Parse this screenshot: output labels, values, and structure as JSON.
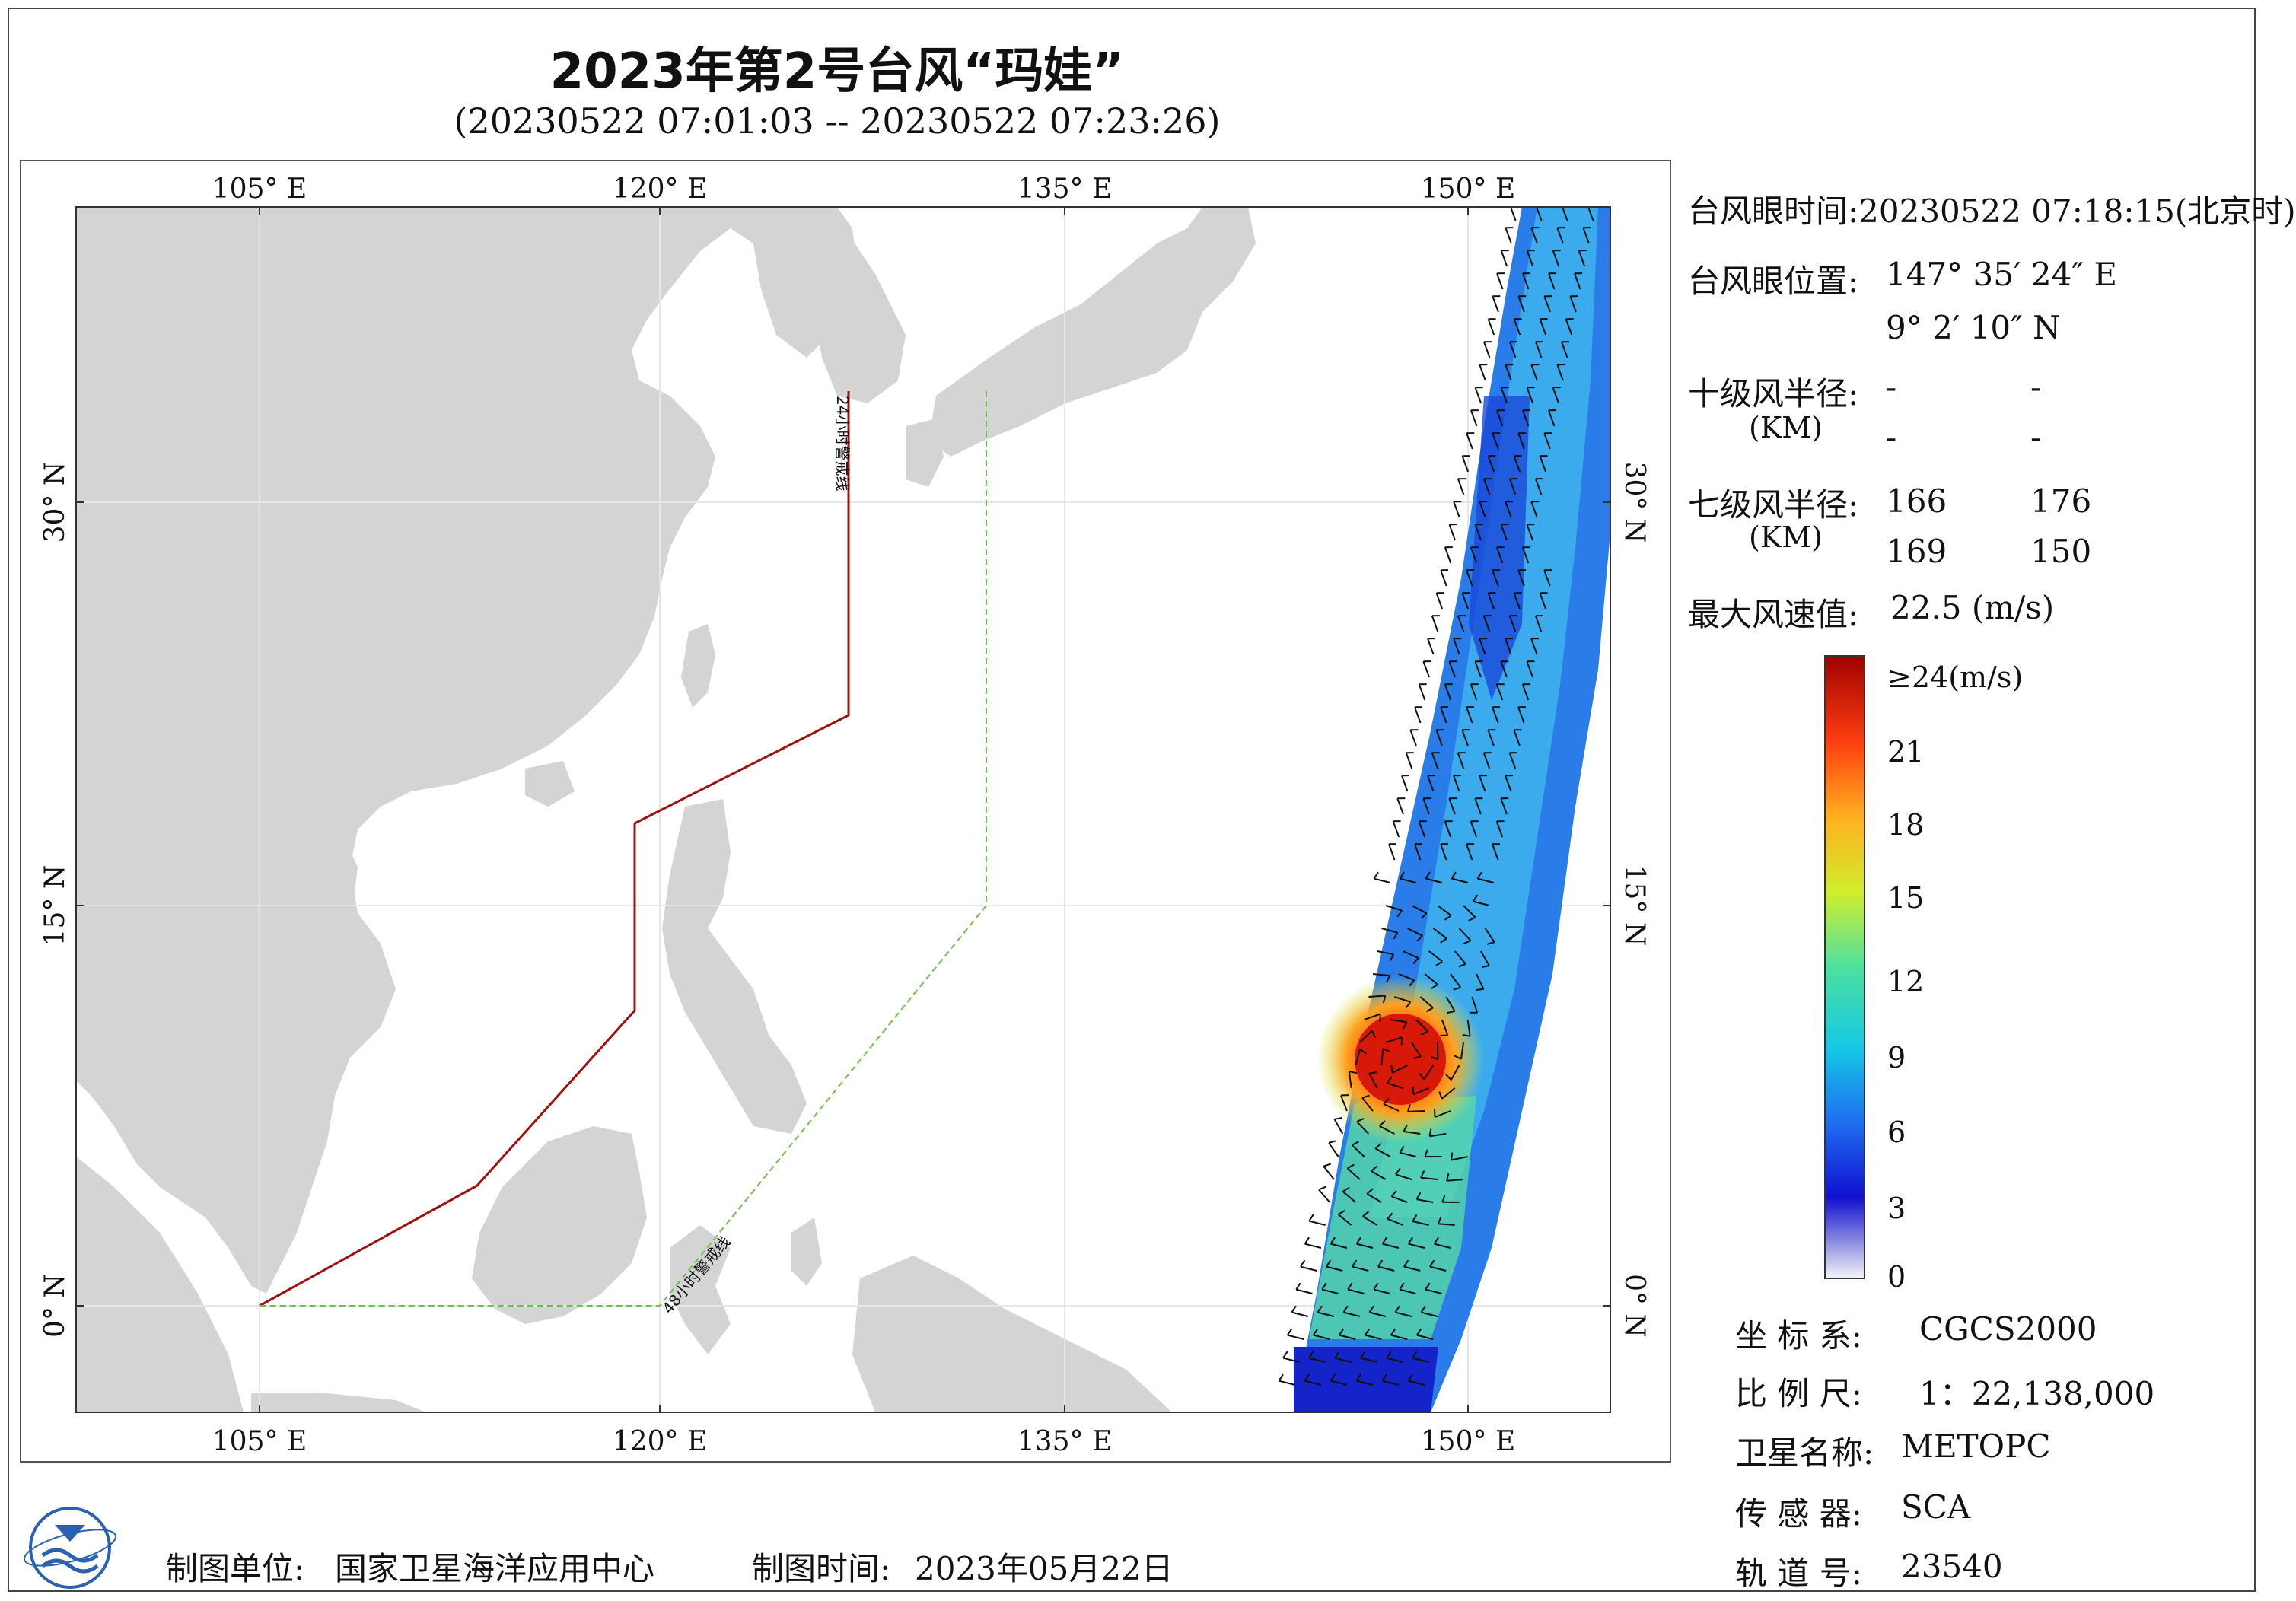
{
  "title": "2023年第2号台风“玛娃”",
  "subtitle": "(20230522 07:01:03 -- 20230522 07:23:26)",
  "map": {
    "lon_labels": [
      "105° E",
      "120° E",
      "135° E",
      "150° E"
    ],
    "lat_labels": [
      "30° N",
      "15° N",
      "0° N"
    ],
    "line_24h_label": "24小时警戒线",
    "line_48h_label": "48小时警戒线",
    "line_24h_color": "#a01010",
    "line_48h_color": "#6cc04a",
    "land_color": "#d4d4d4"
  },
  "info": {
    "eye_time_label": "台风眼时间:",
    "eye_time_value": "20230522 07:18:15(北京时)",
    "eye_pos_label": "台风眼位置:",
    "eye_lon": "147° 35′ 24″ E",
    "eye_lat": "9° 2′ 10″ N",
    "r10_label": "十级风半径:",
    "r10_unit": "(KM)",
    "r10_values": [
      "-",
      "-",
      "-",
      "-"
    ],
    "r7_label": "七级风半径:",
    "r7_unit": "(KM)",
    "r7_values": [
      "166",
      "176",
      "169",
      "150"
    ],
    "max_wind_label": "最大风速值:",
    "max_wind_value": "22.5  (m/s)"
  },
  "colorbar": {
    "labels": [
      "≥24(m/s)",
      "21",
      "18",
      "15",
      "12",
      "9",
      "6",
      "3",
      "0"
    ]
  },
  "meta": {
    "crs_label": "坐 标 系:",
    "crs_value": "CGCS2000",
    "scale_label": "比 例 尺:",
    "scale_value": "1：22,138,000",
    "satellite_label": "卫星名称:",
    "satellite_value": "METOPC",
    "sensor_label": "传 感 器:",
    "sensor_value": "SCA",
    "orbit_label": "轨 道 号:",
    "orbit_value": "23540"
  },
  "footer": {
    "maker_label": "制图单位:",
    "maker_value": "国家卫星海洋应用中心",
    "date_label": "制图时间:",
    "date_value": "2023年05月22日"
  }
}
